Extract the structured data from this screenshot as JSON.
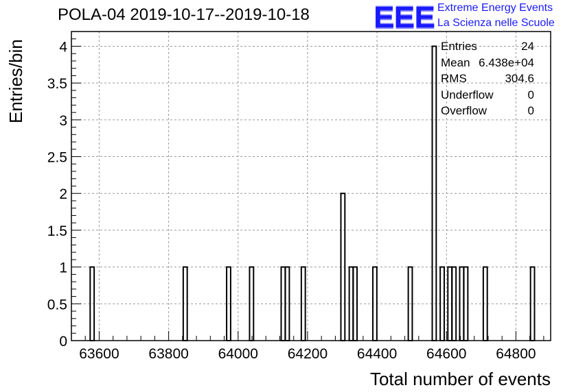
{
  "chart_data": {
    "type": "bar",
    "title": "POLA-04 2019-10-17--2019-10-18",
    "xlabel": "Total number of events",
    "ylabel": "Entries/bin",
    "xlim": [
      63520,
      64900
    ],
    "ylim": [
      0,
      4.2
    ],
    "grid": true,
    "bin_width": 11.5,
    "x_ticks": [
      63600,
      63800,
      64000,
      64200,
      64400,
      64600,
      64800
    ],
    "y_ticks": [
      0,
      0.5,
      1,
      1.5,
      2,
      2.5,
      3,
      3.5,
      4
    ],
    "x_tick_labels": [
      "63600",
      "63800",
      "64000",
      "64200",
      "64400",
      "64600",
      "64800"
    ],
    "y_tick_labels": [
      "0",
      "0.5",
      "1",
      "1.5",
      "2",
      "2.5",
      "3",
      "3.5",
      "4"
    ],
    "bins": [
      {
        "x": 63574,
        "count": 1
      },
      {
        "x": 63842,
        "count": 1
      },
      {
        "x": 63967,
        "count": 1
      },
      {
        "x": 64033,
        "count": 1
      },
      {
        "x": 64124,
        "count": 1
      },
      {
        "x": 64136,
        "count": 1
      },
      {
        "x": 64182,
        "count": 1
      },
      {
        "x": 64296,
        "count": 2
      },
      {
        "x": 64320,
        "count": 1
      },
      {
        "x": 64331,
        "count": 1
      },
      {
        "x": 64388,
        "count": 1
      },
      {
        "x": 64490,
        "count": 1
      },
      {
        "x": 64559,
        "count": 4
      },
      {
        "x": 64582,
        "count": 1
      },
      {
        "x": 64604,
        "count": 1
      },
      {
        "x": 64616,
        "count": 1
      },
      {
        "x": 64638,
        "count": 1
      },
      {
        "x": 64650,
        "count": 1
      },
      {
        "x": 64706,
        "count": 1
      },
      {
        "x": 64842,
        "count": 1
      }
    ]
  },
  "stats": [
    {
      "label": "Entries",
      "value": "24"
    },
    {
      "label": "Mean",
      "value": "6.438e+04"
    },
    {
      "label": "RMS",
      "value": "304.6"
    },
    {
      "label": "Underflow",
      "value": "0"
    },
    {
      "label": "Overflow",
      "value": "0"
    }
  ],
  "logo": {
    "mark": "EEE",
    "line1": "Extreme Energy Events",
    "line2": "La Scienza nelle Scuole",
    "color": "#1a1aff"
  }
}
